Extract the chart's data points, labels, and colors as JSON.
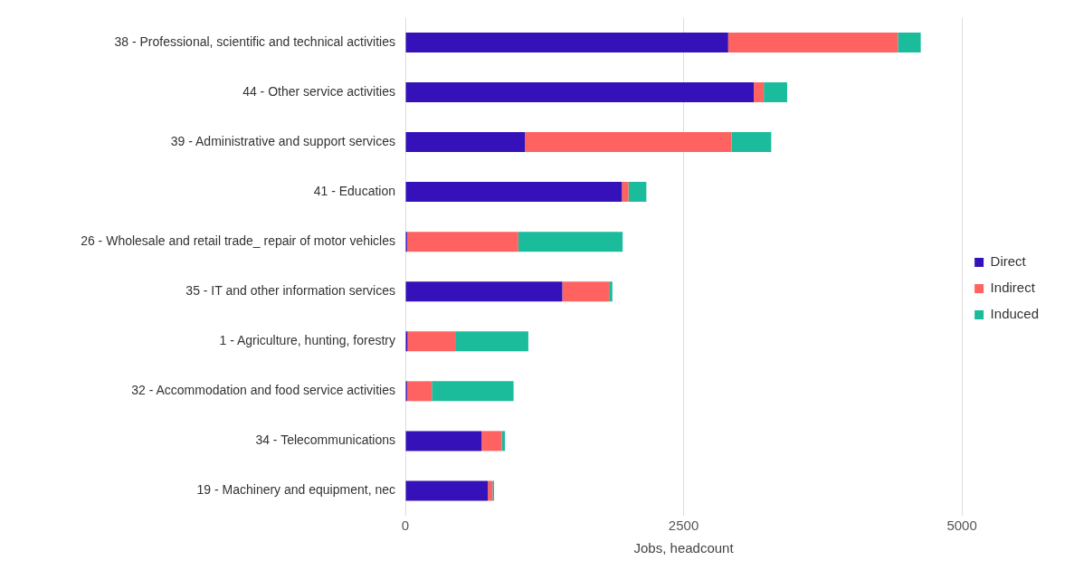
{
  "chart_data": {
    "type": "bar",
    "orientation": "horizontal",
    "stacked": true,
    "xlabel": "Jobs, headcount",
    "categories": [
      "38 - Professional, scientific and technical activities",
      "44 - Other service activities",
      "39 - Administrative and support services",
      "41 - Education",
      "26 - Wholesale and retail trade_ repair of motor vehicles",
      "35 - IT and other information services",
      "1 - Agriculture, hunting, forestry",
      "32 - Accommodation and food service activities",
      "34 - Telecommunications",
      "19 - Machinery and equipment, nec"
    ],
    "series": [
      {
        "name": "Direct",
        "color": "#3411b8",
        "values": [
          2900,
          3130,
          1075,
          1945,
          15,
          1410,
          20,
          15,
          685,
          741
        ]
      },
      {
        "name": "Indirect",
        "color": "#ff6361",
        "values": [
          1525,
          90,
          1855,
          60,
          1000,
          420,
          435,
          223,
          182,
          42
        ]
      },
      {
        "name": "Induced",
        "color": "#1abc9c",
        "values": [
          205,
          210,
          357,
          160,
          937,
          30,
          650,
          734,
          28,
          14
        ]
      }
    ],
    "xlim": [
      0,
      5000
    ],
    "xticks": [
      0,
      2500,
      5000
    ],
    "grid": "x",
    "legend": "right"
  }
}
